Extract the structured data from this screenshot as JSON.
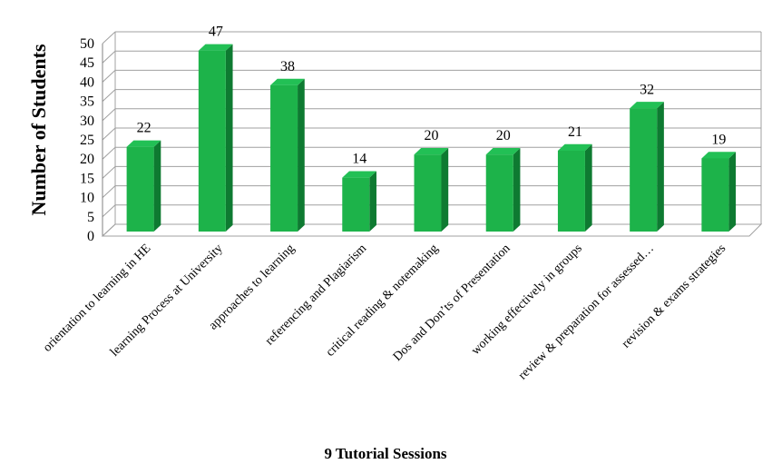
{
  "chart_data": {
    "type": "bar",
    "title": "",
    "xlabel": "9 Tutorial Sessions",
    "ylabel": "Number of Students",
    "ylim": [
      0,
      50
    ],
    "ytick_step": 5,
    "yticks": [
      "0",
      "5",
      "10",
      "15",
      "20",
      "25",
      "30",
      "35",
      "40",
      "45",
      "50"
    ],
    "grid": true,
    "three_d": true,
    "bar_color": "#1db34a",
    "categories": [
      "orientation to learning in HE",
      "learning Process at University",
      "approaches to learning",
      "referencing and Plagiarism",
      "critical reading & notemaking",
      "Dos and Don’ts of Presentation",
      "working effectively in groups",
      "review & preparation for assessed…",
      "revision & exams strategies"
    ],
    "values": [
      22,
      47,
      38,
      14,
      20,
      20,
      21,
      32,
      19
    ],
    "data_labels": [
      "22",
      "47",
      "38",
      "14",
      "20",
      "20",
      "21",
      "32",
      "19"
    ]
  }
}
